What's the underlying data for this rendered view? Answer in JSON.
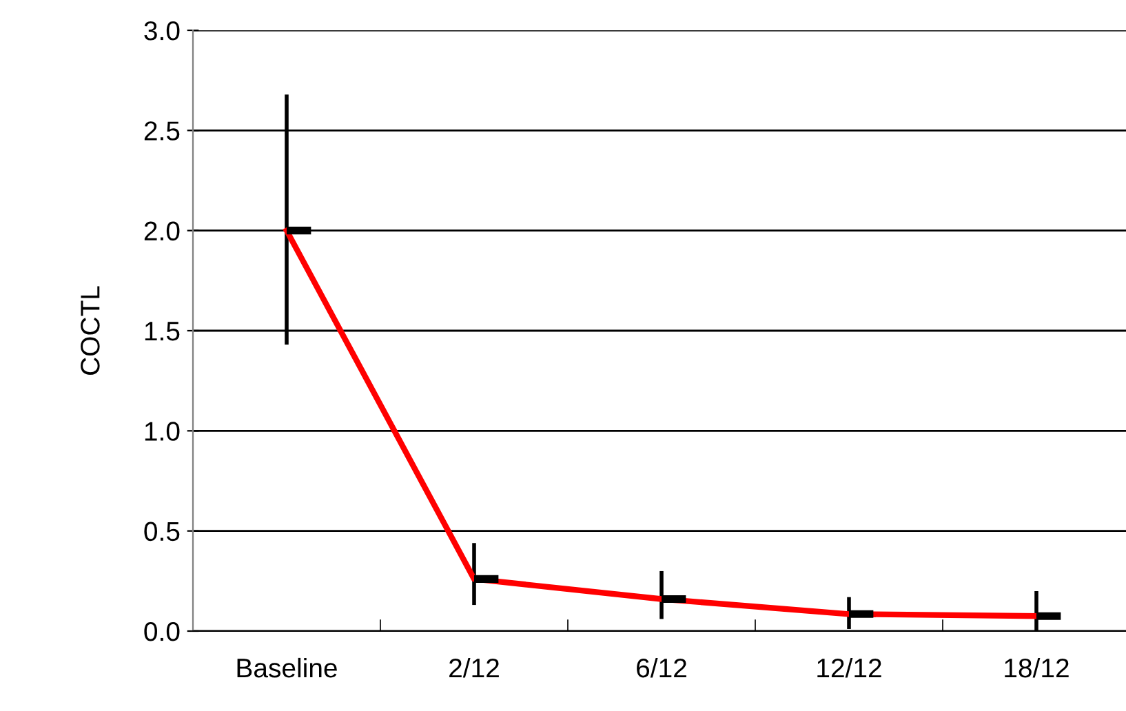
{
  "chart_data": {
    "type": "line",
    "ylabel": "COCTL",
    "categories": [
      "Baseline",
      "2/12",
      "6/12",
      "12/12",
      "18/12"
    ],
    "series": [
      {
        "color": "#ff0000",
        "values": [
          2.0,
          0.26,
          0.16,
          0.085,
          0.075
        ],
        "errors": [
          [
            1.44,
            2.67
          ],
          [
            0.14,
            0.43
          ],
          [
            0.07,
            0.29
          ],
          [
            0.02,
            0.16
          ],
          [
            0.0,
            0.19
          ]
        ]
      }
    ],
    "ylim": [
      0,
      3.0
    ],
    "yticks": [
      {
        "value": 0,
        "label": "0.0"
      },
      {
        "value": 0.5,
        "label": "0.5"
      },
      {
        "value": 1.0,
        "label": "1.0"
      },
      {
        "value": 1.5,
        "label": "1.5"
      },
      {
        "value": 2.0,
        "label": "2.0"
      },
      {
        "value": 2.5,
        "label": "2.5"
      },
      {
        "value": 3.0,
        "label": "3.0"
      }
    ],
    "grid": "y",
    "legend": false,
    "marker": "none",
    "line_style": "solid"
  }
}
